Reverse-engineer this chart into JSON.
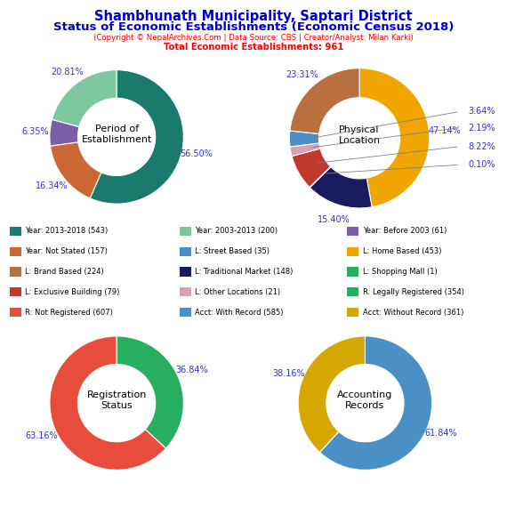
{
  "title_line1": "Shambhunath Municipality, Saptari District",
  "title_line2": "Status of Economic Establishments (Economic Census 2018)",
  "subtitle": "(Copyright © NepalArchives.Com | Data Source: CBS | Creator/Analyst: Milan Karki)",
  "subtitle2": "Total Economic Establishments: 961",
  "title_color": "#0000CD",
  "subtitle_color": "#FF0000",
  "pie1_label": "Period of\nEstablishment",
  "pie1_values": [
    56.5,
    16.34,
    6.35,
    20.81
  ],
  "pie1_colors": [
    "#1a7a6e",
    "#cc6633",
    "#7b5ea7",
    "#7ec8a0"
  ],
  "pie1_pct_labels": [
    "56.50%",
    "16.34%",
    "6.35%",
    "20.81%"
  ],
  "pie1_startangle": 90,
  "pie2_label": "Physical\nLocation",
  "pie2_values": [
    47.14,
    15.4,
    0.1,
    8.22,
    2.19,
    3.64,
    23.31
  ],
  "pie2_colors": [
    "#f0a500",
    "#1a1a5e",
    "#006400",
    "#c0392b",
    "#d8a0b0",
    "#4a90c4",
    "#b87040"
  ],
  "pie2_pct_labels": [
    "47.14%",
    "15.40%",
    "0.10%",
    "8.22%",
    "2.19%",
    "3.64%",
    "23.31%"
  ],
  "pie2_startangle": 90,
  "pie3_label": "Registration\nStatus",
  "pie3_values": [
    36.84,
    63.16
  ],
  "pie3_colors": [
    "#27ae60",
    "#e74c3c"
  ],
  "pie3_pct_labels": [
    "36.84%",
    "63.16%"
  ],
  "pie3_startangle": 90,
  "pie4_label": "Accounting\nRecords",
  "pie4_values": [
    61.84,
    38.16
  ],
  "pie4_colors": [
    "#4a90c4",
    "#d4a800"
  ],
  "pie4_pct_labels": [
    "61.84%",
    "38.16%"
  ],
  "pie4_startangle": 90,
  "legend_items": [
    {
      "label": "Year: 2013-2018 (543)",
      "color": "#1a7a6e"
    },
    {
      "label": "Year: 2003-2013 (200)",
      "color": "#7ec8a0"
    },
    {
      "label": "Year: Before 2003 (61)",
      "color": "#7b5ea7"
    },
    {
      "label": "Year: Not Stated (157)",
      "color": "#cc6633"
    },
    {
      "label": "L: Street Based (35)",
      "color": "#4a90c4"
    },
    {
      "label": "L: Home Based (453)",
      "color": "#f0a500"
    },
    {
      "label": "L: Brand Based (224)",
      "color": "#b87040"
    },
    {
      "label": "L: Traditional Market (148)",
      "color": "#1a1a5e"
    },
    {
      "label": "L: Shopping Mall (1)",
      "color": "#27ae60"
    },
    {
      "label": "L: Exclusive Building (79)",
      "color": "#c0392b"
    },
    {
      "label": "L: Other Locations (21)",
      "color": "#d8a0b0"
    },
    {
      "label": "R: Legally Registered (354)",
      "color": "#27ae60"
    },
    {
      "label": "R: Not Registered (607)",
      "color": "#e74c3c"
    },
    {
      "label": "Acct: With Record (585)",
      "color": "#4a90c4"
    },
    {
      "label": "Acct: Without Record (361)",
      "color": "#d4a800"
    }
  ],
  "pct_label_color": "#3333cc",
  "background_color": "#ffffff"
}
